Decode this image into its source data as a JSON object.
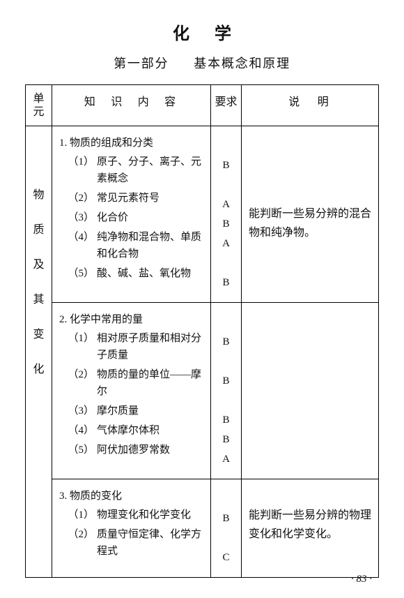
{
  "title": "化学",
  "subtitle": {
    "part": "第一部分",
    "name": "基本概念和原理"
  },
  "table": {
    "headers": {
      "unit": "单\n元",
      "content": "知识内容",
      "req": "要求",
      "desc": "说明"
    },
    "unit_label": "物质及其变化",
    "sections": [
      {
        "heading": "1. 物质的组成和分类",
        "items": [
          {
            "n": "（1）",
            "text": "原子、分子、离子、元素概念",
            "req": "B"
          },
          {
            "n": "（2）",
            "text": "常见元素符号",
            "req": "A"
          },
          {
            "n": "（3）",
            "text": "化合价",
            "req": "B"
          },
          {
            "n": "（4）",
            "text": "纯净物和混合物、单质和化合物",
            "req": "A"
          },
          {
            "n": "（5）",
            "text": "酸、碱、盐、氧化物",
            "req": "B"
          }
        ],
        "desc": "能判断一些易分辨的混合物和纯净物。"
      },
      {
        "heading": "2. 化学中常用的量",
        "items": [
          {
            "n": "（1）",
            "text": "相对原子质量和相对分子质量",
            "req": "B"
          },
          {
            "n": "（2）",
            "text": "物质的量的单位——摩尔",
            "req": "B"
          },
          {
            "n": "（3）",
            "text": "摩尔质量",
            "req": "B"
          },
          {
            "n": "（4）",
            "text": "气体摩尔体积",
            "req": "B"
          },
          {
            "n": "（5）",
            "text": "阿伏加德罗常数",
            "req": "A"
          }
        ],
        "desc": ""
      },
      {
        "heading": "3. 物质的变化",
        "items": [
          {
            "n": "（1）",
            "text": "物理变化和化学变化",
            "req": "B"
          },
          {
            "n": "（2）",
            "text": "质量守恒定律、化学方程式",
            "req": "C"
          }
        ],
        "desc": "能判断一些易分辨的物理变化和化学变化。"
      }
    ]
  },
  "page_number": "· 83 ·",
  "style": {
    "text_color": "#111111",
    "border_color": "#000000",
    "background_color": "#ffffff",
    "font_family_serif": "SimSun"
  }
}
